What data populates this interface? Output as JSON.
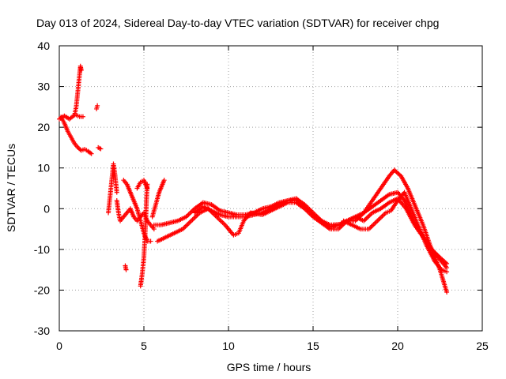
{
  "chart_data": {
    "type": "scatter",
    "title": "Day 013 of 2024, Sidereal Day-to-day VTEC variation (SDTVAR) for receiver chpg",
    "xlabel": "GPS time / hours",
    "ylabel": "SDTVAR / TECUs",
    "xlim": [
      0,
      25
    ],
    "ylim": [
      -30,
      40
    ],
    "x_ticks": [
      0,
      5,
      10,
      15,
      20,
      25
    ],
    "y_ticks": [
      -30,
      -20,
      -10,
      0,
      10,
      20,
      30,
      40
    ],
    "grid": true,
    "marker": "+",
    "color": "#ff0000",
    "series": [
      {
        "name": "s1",
        "points": [
          [
            0.0,
            22
          ],
          [
            0.3,
            22.8
          ],
          [
            0.6,
            22
          ],
          [
            0.9,
            23
          ],
          [
            1.0,
            25
          ],
          [
            1.1,
            29
          ],
          [
            1.2,
            33
          ],
          [
            1.25,
            35
          ],
          [
            1.3,
            34
          ]
        ]
      },
      {
        "name": "s2",
        "points": [
          [
            0.1,
            22.5
          ],
          [
            0.3,
            21
          ],
          [
            0.5,
            19
          ],
          [
            0.7,
            17.5
          ],
          [
            0.9,
            16
          ],
          [
            1.1,
            15
          ],
          [
            1.3,
            14.3
          ],
          [
            1.5,
            14.6
          ],
          [
            1.7,
            14.1
          ],
          [
            1.9,
            13.5
          ]
        ]
      },
      {
        "name": "s3",
        "points": [
          [
            1.0,
            23
          ],
          [
            1.2,
            22.6
          ],
          [
            1.4,
            22.6
          ]
        ]
      },
      {
        "name": "s4",
        "points": [
          [
            2.2,
            24.5
          ],
          [
            2.25,
            25.3
          ]
        ]
      },
      {
        "name": "s5",
        "points": [
          [
            2.3,
            15
          ],
          [
            2.45,
            14.7
          ]
        ]
      },
      {
        "name": "s6",
        "points": [
          [
            2.9,
            -1
          ],
          [
            3.0,
            3
          ],
          [
            3.1,
            7
          ],
          [
            3.2,
            11
          ],
          [
            3.3,
            8
          ],
          [
            3.4,
            4
          ]
        ]
      },
      {
        "name": "s7",
        "points": [
          [
            3.4,
            2
          ],
          [
            3.5,
            -1
          ],
          [
            3.6,
            -3
          ],
          [
            3.8,
            -2
          ],
          [
            4.0,
            -1
          ],
          [
            4.2,
            0
          ],
          [
            4.4,
            -2
          ],
          [
            4.6,
            -3
          ],
          [
            4.8,
            -2
          ],
          [
            5.0,
            -1
          ],
          [
            5.2,
            -3
          ],
          [
            5.4,
            -4
          ],
          [
            5.6,
            -5
          ]
        ]
      },
      {
        "name": "s8",
        "points": [
          [
            3.8,
            7
          ],
          [
            4.0,
            6
          ],
          [
            4.2,
            4
          ],
          [
            4.4,
            2
          ],
          [
            4.6,
            0
          ],
          [
            4.8,
            -3
          ],
          [
            5.0,
            -6
          ],
          [
            5.2,
            -8
          ],
          [
            5.4,
            -8
          ]
        ]
      },
      {
        "name": "s9",
        "points": [
          [
            3.9,
            -14
          ],
          [
            3.95,
            -15
          ]
        ]
      },
      {
        "name": "s10",
        "points": [
          [
            4.8,
            -19
          ],
          [
            4.9,
            -16
          ],
          [
            5.0,
            -12
          ],
          [
            5.05,
            -8
          ],
          [
            5.1,
            -4
          ],
          [
            5.15,
            2
          ],
          [
            5.2,
            6
          ]
        ]
      },
      {
        "name": "s11",
        "points": [
          [
            4.6,
            5
          ],
          [
            4.8,
            6.5
          ],
          [
            5.0,
            7
          ],
          [
            5.2,
            5
          ]
        ]
      },
      {
        "name": "s12",
        "points": [
          [
            5.5,
            -2
          ],
          [
            5.7,
            1
          ],
          [
            5.9,
            4
          ],
          [
            6.1,
            6
          ],
          [
            6.2,
            7
          ]
        ]
      },
      {
        "name": "s13",
        "points": [
          [
            5.6,
            -4
          ],
          [
            6,
            -4
          ],
          [
            6.5,
            -3.5
          ],
          [
            7,
            -3
          ],
          [
            7.5,
            -2
          ],
          [
            8,
            0
          ],
          [
            8.5,
            1.5
          ],
          [
            9,
            1
          ],
          [
            9.5,
            -0.5
          ],
          [
            10,
            -1
          ],
          [
            10.5,
            -1.5
          ],
          [
            11,
            -1.5
          ],
          [
            11.5,
            -1
          ],
          [
            12,
            0
          ],
          [
            12.5,
            0.5
          ],
          [
            13,
            1.5
          ],
          [
            13.5,
            2
          ],
          [
            14,
            2.5
          ],
          [
            14.5,
            1
          ],
          [
            15,
            -1
          ],
          [
            15.5,
            -3
          ],
          [
            16,
            -4.5
          ],
          [
            16.5,
            -4
          ],
          [
            17,
            -3
          ],
          [
            17.5,
            -3
          ],
          [
            18,
            -1
          ],
          [
            18.5,
            2
          ],
          [
            19,
            5
          ],
          [
            19.5,
            8
          ],
          [
            19.8,
            9.5
          ],
          [
            20.2,
            8
          ],
          [
            20.6,
            5
          ],
          [
            21,
            1
          ],
          [
            21.5,
            -4
          ],
          [
            22,
            -10
          ],
          [
            22.5,
            -15
          ],
          [
            22.9,
            -20.5
          ]
        ]
      },
      {
        "name": "s14",
        "points": [
          [
            5.8,
            -8
          ],
          [
            6.3,
            -7
          ],
          [
            6.8,
            -6
          ],
          [
            7.3,
            -5
          ],
          [
            7.8,
            -3
          ],
          [
            8.3,
            -1
          ],
          [
            8.8,
            0
          ],
          [
            9.3,
            -2
          ],
          [
            9.8,
            -4
          ],
          [
            10.3,
            -6.5
          ],
          [
            10.6,
            -6
          ],
          [
            10.9,
            -3
          ],
          [
            11.3,
            -1
          ],
          [
            12,
            -1.5
          ],
          [
            12.5,
            -0.5
          ],
          [
            13,
            0.5
          ],
          [
            13.5,
            1.5
          ],
          [
            14,
            1.5
          ],
          [
            14.5,
            0
          ],
          [
            15,
            -2
          ],
          [
            15.5,
            -3.5
          ],
          [
            16,
            -5
          ],
          [
            16.5,
            -5
          ],
          [
            17,
            -3
          ],
          [
            17.5,
            -2
          ],
          [
            18,
            -3
          ],
          [
            18.5,
            -1
          ],
          [
            19,
            0
          ],
          [
            19.5,
            1.5
          ],
          [
            20,
            2.5
          ],
          [
            20.5,
            0
          ],
          [
            21,
            -4
          ],
          [
            21.5,
            -7
          ],
          [
            22,
            -10
          ],
          [
            22.5,
            -12
          ],
          [
            22.9,
            -13.5
          ]
        ]
      },
      {
        "name": "s15",
        "points": [
          [
            8,
            -1
          ],
          [
            8.5,
            0.5
          ],
          [
            9,
            -0.5
          ],
          [
            9.5,
            -1.5
          ],
          [
            10,
            -2
          ],
          [
            10.5,
            -2
          ],
          [
            11,
            -2
          ],
          [
            11.5,
            -1.5
          ],
          [
            12,
            -1
          ],
          [
            12.5,
            0
          ],
          [
            13,
            1
          ],
          [
            13.5,
            2
          ],
          [
            14,
            2
          ],
          [
            14.5,
            0.5
          ],
          [
            15,
            -1.5
          ],
          [
            15.5,
            -3
          ],
          [
            16,
            -4
          ],
          [
            16.6,
            -3.8
          ],
          [
            17,
            -3
          ],
          [
            17.5,
            -2
          ],
          [
            18,
            -1
          ],
          [
            18.5,
            0.5
          ],
          [
            19,
            2
          ],
          [
            19.5,
            3.5
          ],
          [
            20,
            4
          ],
          [
            20.4,
            2
          ],
          [
            20.8,
            -2
          ],
          [
            21.2,
            -5
          ],
          [
            21.7,
            -8
          ],
          [
            22.2,
            -11
          ],
          [
            22.6,
            -13
          ],
          [
            22.9,
            -14.5
          ]
        ]
      },
      {
        "name": "s16",
        "points": [
          [
            16.8,
            -3
          ],
          [
            17.3,
            -4
          ],
          [
            17.8,
            -5
          ],
          [
            18.3,
            -5
          ],
          [
            18.8,
            -3
          ],
          [
            19.3,
            -1
          ],
          [
            19.6,
            -0.5
          ],
          [
            20,
            2
          ],
          [
            20.4,
            4
          ],
          [
            20.8,
            0
          ],
          [
            21.2,
            -4
          ],
          [
            21.7,
            -9
          ],
          [
            22.2,
            -13
          ],
          [
            22.6,
            -15
          ],
          [
            22.9,
            -15.5
          ]
        ]
      }
    ]
  }
}
